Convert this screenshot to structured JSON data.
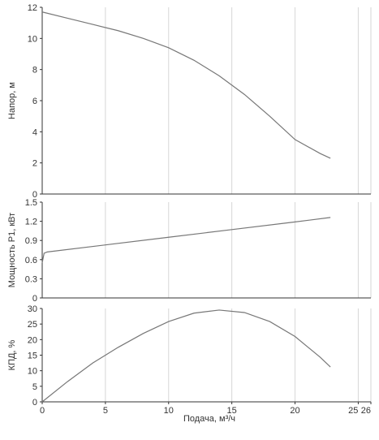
{
  "chart_data": [
    {
      "type": "line",
      "ylabel": "Напор, м",
      "ylim": [
        0,
        12
      ],
      "yticks": [
        "0",
        "2",
        "4",
        "6",
        "8",
        "10",
        "12"
      ],
      "xlim": [
        0,
        26
      ],
      "grid": true,
      "series": [
        {
          "x": [
            0,
            2,
            4,
            6,
            8,
            10,
            12,
            14,
            16,
            18,
            20,
            22,
            22.8
          ],
          "y": [
            11.7,
            11.3,
            10.9,
            10.5,
            10.0,
            9.4,
            8.6,
            7.6,
            6.4,
            5.0,
            3.5,
            2.6,
            2.3
          ]
        }
      ]
    },
    {
      "type": "line",
      "ylabel": "Мощность P1, кВт",
      "ylim": [
        0,
        1.5
      ],
      "yticks": [
        "0",
        "0.3",
        "0.6",
        "0.9",
        "1.2",
        "1.5"
      ],
      "xlim": [
        0,
        26
      ],
      "grid": true,
      "series": [
        {
          "x": [
            0,
            0.15,
            0.4,
            5,
            10,
            15,
            20,
            22.8
          ],
          "y": [
            0.55,
            0.7,
            0.72,
            0.83,
            0.95,
            1.07,
            1.19,
            1.26
          ]
        }
      ]
    },
    {
      "type": "line",
      "ylabel": "КПД, %",
      "ylim": [
        0,
        30
      ],
      "yticks": [
        "0",
        "5",
        "10",
        "15",
        "20",
        "25",
        "30"
      ],
      "xlim": [
        0,
        26
      ],
      "xticks": [
        "0",
        "5",
        "10",
        "15",
        "20",
        "25",
        "26"
      ],
      "xlabel": "Подача, м³/ч",
      "grid": true,
      "series": [
        {
          "x": [
            0,
            2,
            4,
            6,
            8,
            10,
            12,
            14,
            16,
            18,
            20,
            22,
            22.8
          ],
          "y": [
            0,
            6.5,
            12.5,
            17.5,
            22.0,
            25.8,
            28.5,
            29.5,
            28.7,
            25.8,
            21.0,
            14.3,
            11.2
          ]
        }
      ]
    }
  ]
}
